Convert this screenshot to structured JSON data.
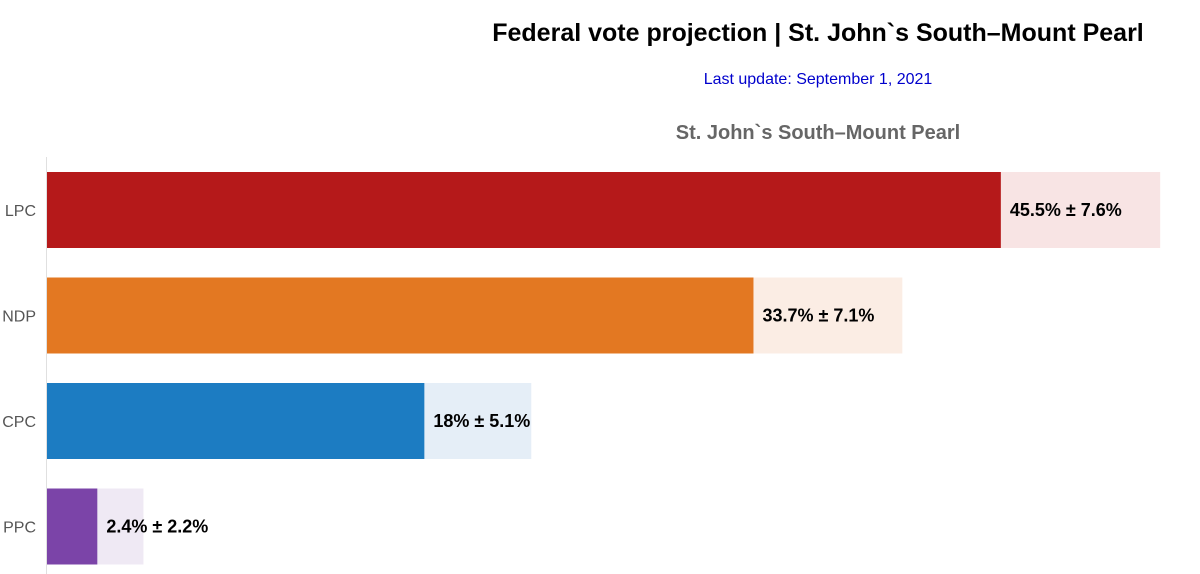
{
  "header": {
    "title": "Federal vote projection | St. John`s South–Mount Pearl",
    "subtitle": "Last update: September 1, 2021"
  },
  "chart_data": {
    "type": "bar",
    "orientation": "horizontal",
    "title": "St. John`s South–Mount Pearl",
    "categories": [
      "LPC",
      "NDP",
      "CPC",
      "PPC"
    ],
    "values": [
      45.5,
      33.7,
      18,
      2.4
    ],
    "errors": [
      7.6,
      7.1,
      5.1,
      2.2
    ],
    "labels": [
      "45.5% ± 7.6%",
      "33.7% ± 7.1%",
      "18% ± 5.1%",
      "2.4% ± 2.2%"
    ],
    "colors": [
      "#b5191a",
      "#e37822",
      "#1c7cc2",
      "#7b44a8"
    ],
    "range_colors": [
      "#f8e4e4",
      "#fbede4",
      "#e5eef7",
      "#efe9f4"
    ],
    "xlim": [
      0,
      55
    ],
    "xlabel": "",
    "ylabel": "",
    "grid": false,
    "legend": "none"
  }
}
